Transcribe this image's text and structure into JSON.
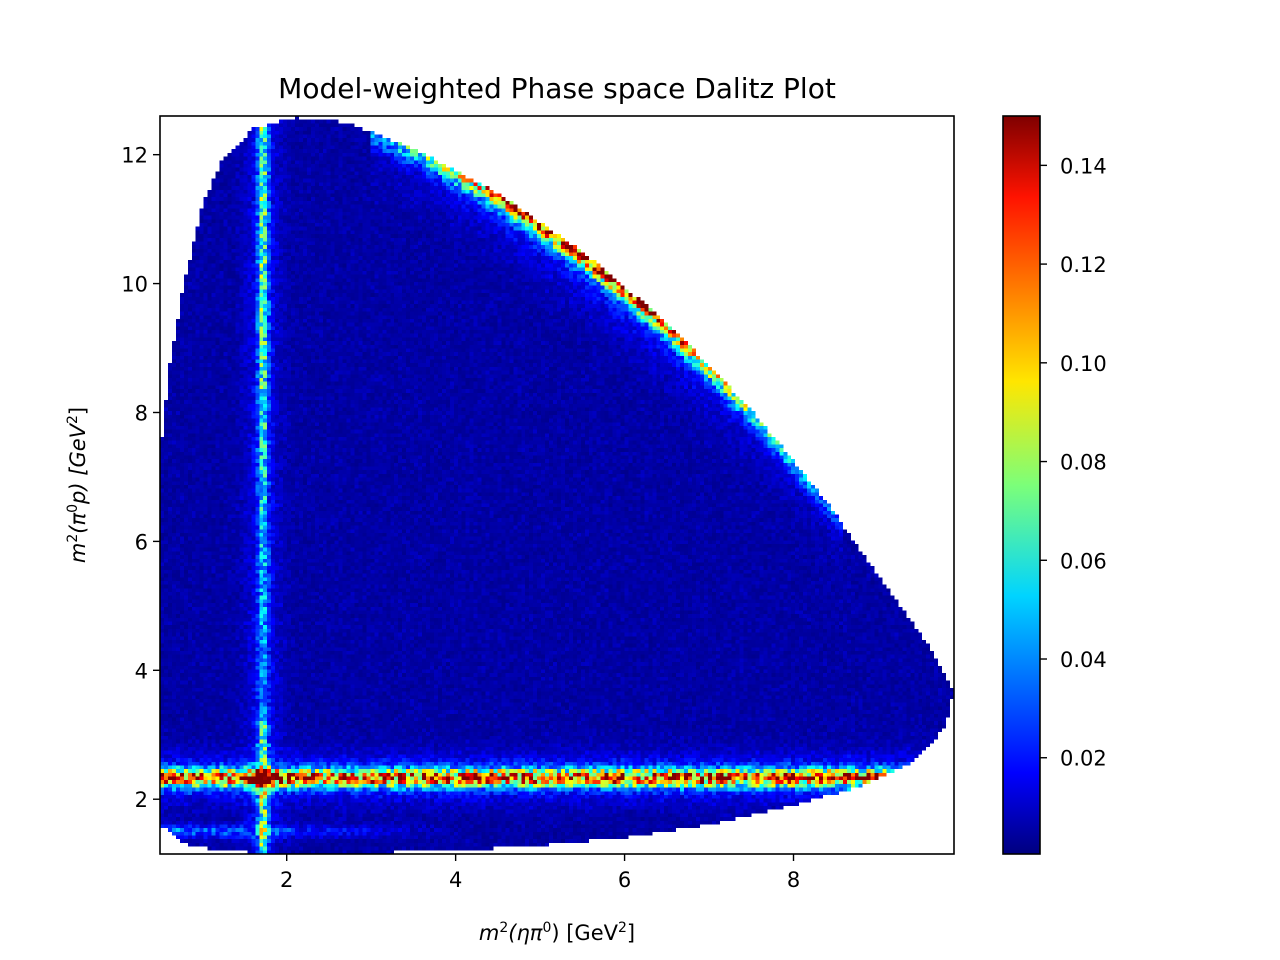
{
  "chart_data": {
    "type": "heatmap",
    "title": "Model-weighted Phase space Dalitz Plot",
    "xlabel_parts": [
      "m",
      "2",
      "(ηπ",
      "0",
      ") [GeV",
      "2",
      "]"
    ],
    "ylabel_parts": [
      "m",
      "2",
      "(π",
      "0",
      "p) [GeV",
      "2",
      "]"
    ],
    "xlim": [
      0.5,
      9.9
    ],
    "ylim": [
      1.15,
      12.6
    ],
    "x_ticks": [
      2,
      4,
      6,
      8
    ],
    "x_tick_labels": [
      "2",
      "4",
      "6",
      "8"
    ],
    "y_ticks": [
      2,
      4,
      6,
      8,
      10,
      12
    ],
    "y_tick_labels": [
      "2",
      "4",
      "6",
      "8",
      "10",
      "12"
    ],
    "colorbar": {
      "colormap": "jet",
      "range": [
        0.0005,
        0.15
      ],
      "ticks": [
        0.02,
        0.04,
        0.06,
        0.08,
        0.1,
        0.12,
        0.14
      ],
      "tick_labels": [
        "0.02",
        "0.04",
        "0.06",
        "0.08",
        "0.10",
        "0.12",
        "0.14"
      ]
    },
    "bins": [
      200,
      200
    ],
    "boundary": [
      [
        0.5,
        1.6
      ],
      [
        0.5,
        7.3
      ],
      [
        0.6,
        8.6
      ],
      [
        0.78,
        10.0
      ],
      [
        1.0,
        11.2
      ],
      [
        1.25,
        11.95
      ],
      [
        1.6,
        12.4
      ],
      [
        2.1,
        12.58
      ],
      [
        2.7,
        12.5
      ],
      [
        3.5,
        12.1
      ],
      [
        4.5,
        11.4
      ],
      [
        5.5,
        10.5
      ],
      [
        6.5,
        9.4
      ],
      [
        7.5,
        8.05
      ],
      [
        8.4,
        6.6
      ],
      [
        9.1,
        5.3
      ],
      [
        9.6,
        4.4
      ],
      [
        9.9,
        3.7
      ],
      [
        9.8,
        3.1
      ],
      [
        9.4,
        2.55
      ],
      [
        8.8,
        2.2
      ],
      [
        8.0,
        1.9
      ],
      [
        7.0,
        1.6
      ],
      [
        6.0,
        1.4
      ],
      [
        5.0,
        1.28
      ],
      [
        4.0,
        1.2
      ],
      [
        3.0,
        1.17
      ],
      [
        2.0,
        1.15
      ],
      [
        1.2,
        1.2
      ],
      [
        0.8,
        1.3
      ]
    ],
    "features": [
      {
        "name": "horizontal band",
        "axis": "y",
        "center": 2.33,
        "width": 0.13,
        "peak": 0.1,
        "extent_x": [
          0.5,
          9.0
        ]
      },
      {
        "name": "lower faint band",
        "axis": "y",
        "center": 1.5,
        "width": 0.1,
        "peak": 0.035,
        "extent_x": [
          0.5,
          4.0
        ]
      },
      {
        "name": "vertical band",
        "axis": "x",
        "center": 1.72,
        "width": 0.06,
        "peak": 0.055,
        "extent_y": [
          1.15,
          12.3
        ]
      },
      {
        "name": "upper diagonal edge band",
        "along": "upper boundary",
        "peak": 0.12,
        "extent_x": [
          3.8,
          7.8
        ]
      },
      {
        "name": "band crossing hotspot",
        "center": [
          1.72,
          2.33
        ],
        "peak": 0.15
      }
    ]
  }
}
